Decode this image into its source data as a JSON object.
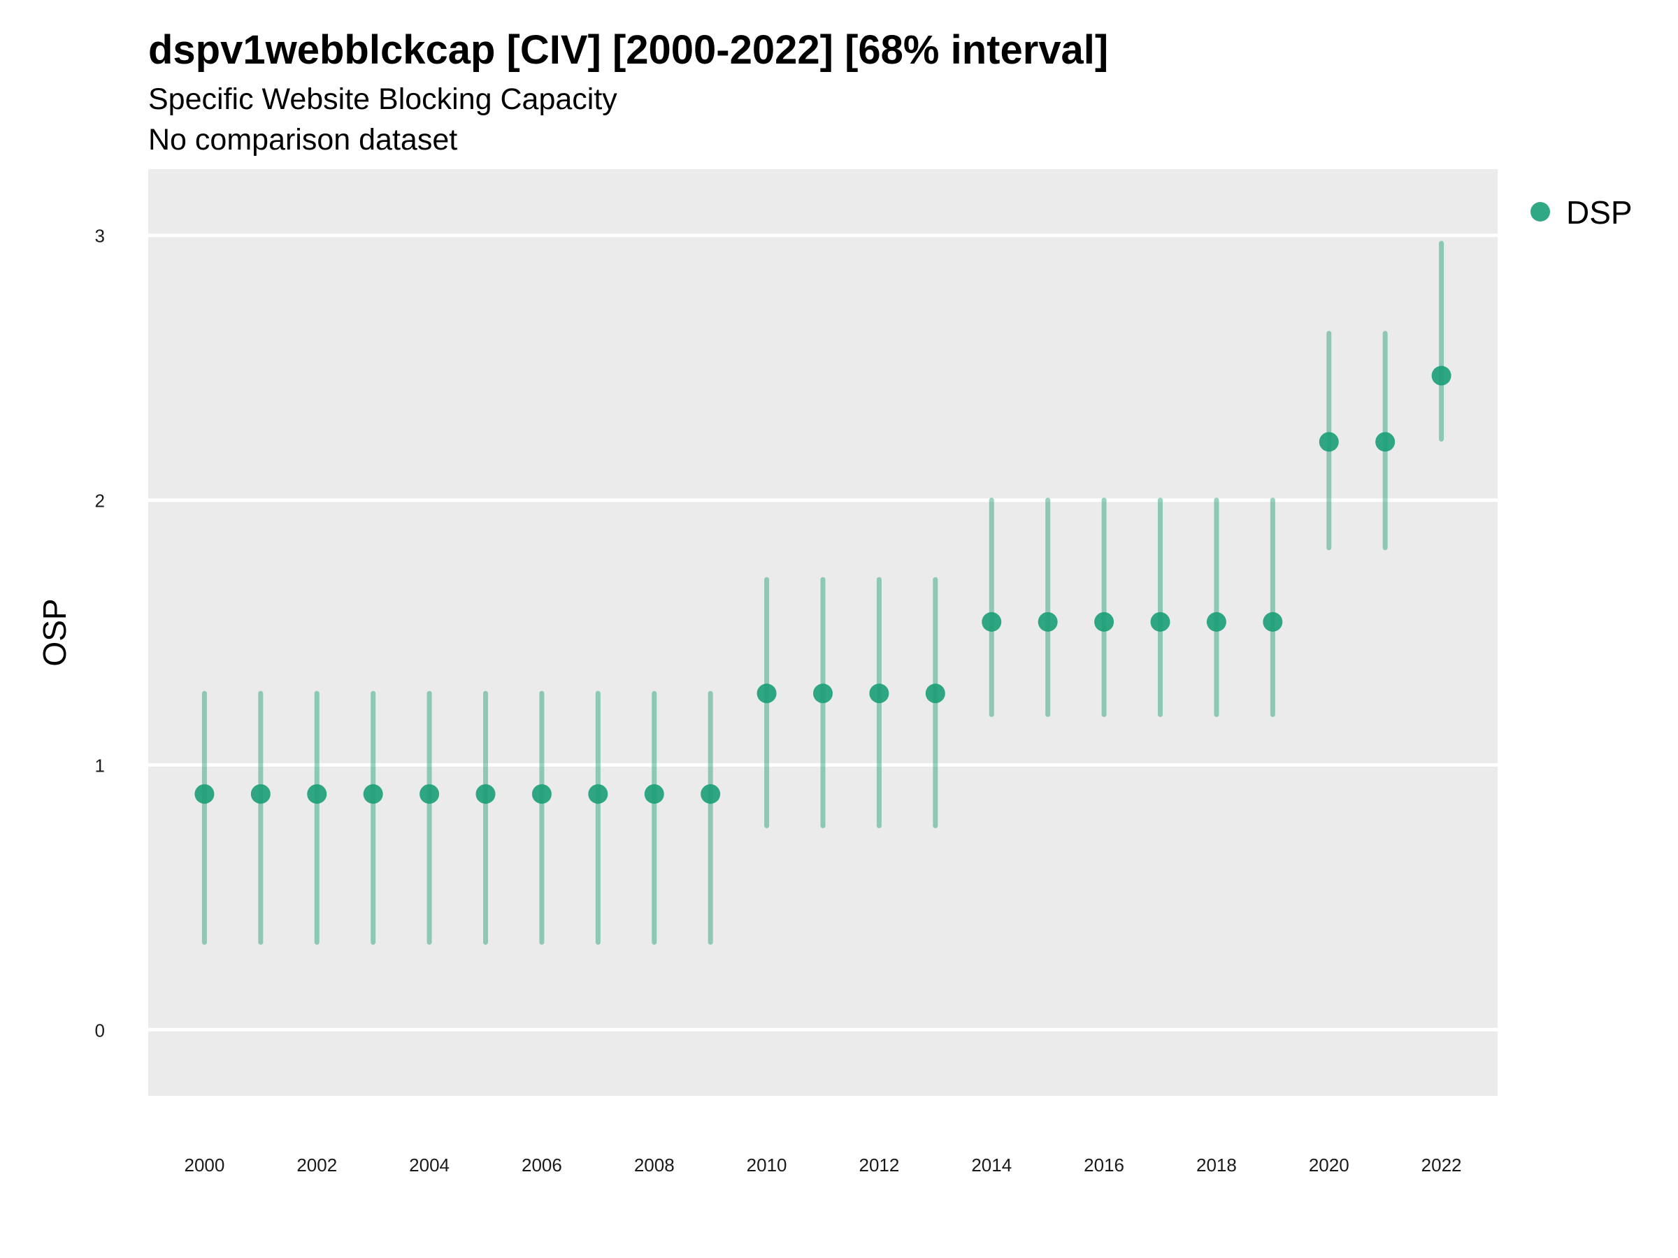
{
  "chart_data": {
    "type": "scatter",
    "title": "dspv1webblckcap [CIV] [2000-2022] [68% interval]",
    "subtitle_lines": [
      "Specific Website Blocking Capacity",
      "No comparison dataset"
    ],
    "xlabel": "",
    "ylabel": "OSP",
    "x_ticks": [
      "2000",
      "2002",
      "2004",
      "2006",
      "2008",
      "2010",
      "2012",
      "2014",
      "2016",
      "2018",
      "2020",
      "2022"
    ],
    "y_ticks": [
      "0",
      "1",
      "2",
      "3"
    ],
    "xlim": [
      1999,
      2023
    ],
    "ylim": [
      -0.25,
      3.25
    ],
    "grid": true,
    "legend_position": "right",
    "series": [
      {
        "name": "DSP",
        "color": "#1b9e77",
        "x": [
          2000,
          2001,
          2002,
          2003,
          2004,
          2005,
          2006,
          2007,
          2008,
          2009,
          2010,
          2011,
          2012,
          2013,
          2014,
          2015,
          2016,
          2017,
          2018,
          2019,
          2020,
          2021,
          2022
        ],
        "y": [
          0.89,
          0.89,
          0.89,
          0.89,
          0.89,
          0.89,
          0.89,
          0.89,
          0.89,
          0.89,
          1.27,
          1.27,
          1.27,
          1.27,
          1.54,
          1.54,
          1.54,
          1.54,
          1.54,
          1.54,
          2.22,
          2.22,
          2.47
        ],
        "lower": [
          0.33,
          0.33,
          0.33,
          0.33,
          0.33,
          0.33,
          0.33,
          0.33,
          0.33,
          0.33,
          0.77,
          0.77,
          0.77,
          0.77,
          1.19,
          1.19,
          1.19,
          1.19,
          1.19,
          1.19,
          1.82,
          1.82,
          2.23
        ],
        "upper": [
          1.27,
          1.27,
          1.27,
          1.27,
          1.27,
          1.27,
          1.27,
          1.27,
          1.27,
          1.27,
          1.7,
          1.7,
          1.7,
          1.7,
          2.0,
          2.0,
          2.0,
          2.0,
          2.0,
          2.0,
          2.63,
          2.63,
          2.97
        ]
      }
    ]
  }
}
